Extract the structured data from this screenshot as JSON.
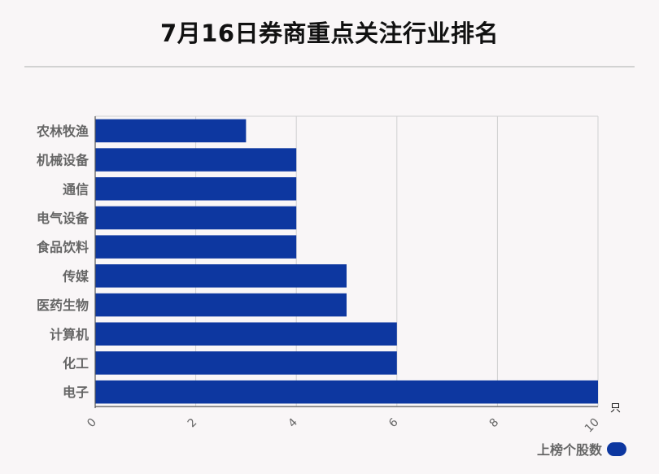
{
  "chart_data": {
    "type": "bar",
    "orientation": "horizontal",
    "title": "7月16日券商重点关注行业排名",
    "categories": [
      "农林牧渔",
      "机械设备",
      "通信",
      "电气设备",
      "食品饮料",
      "传媒",
      "医药生物",
      "计算机",
      "化工",
      "电子"
    ],
    "series": [
      {
        "name": "上榜个股数",
        "values": [
          3,
          4,
          4,
          4,
          4,
          5,
          5,
          6,
          6,
          10
        ]
      }
    ],
    "xlim": [
      0,
      10
    ],
    "xticks": [
      "0",
      "2",
      "4",
      "6",
      "8",
      "10"
    ],
    "x_unit": "只",
    "grid": true,
    "legend": "bottom-right",
    "bar_color": "#0d37a0"
  }
}
